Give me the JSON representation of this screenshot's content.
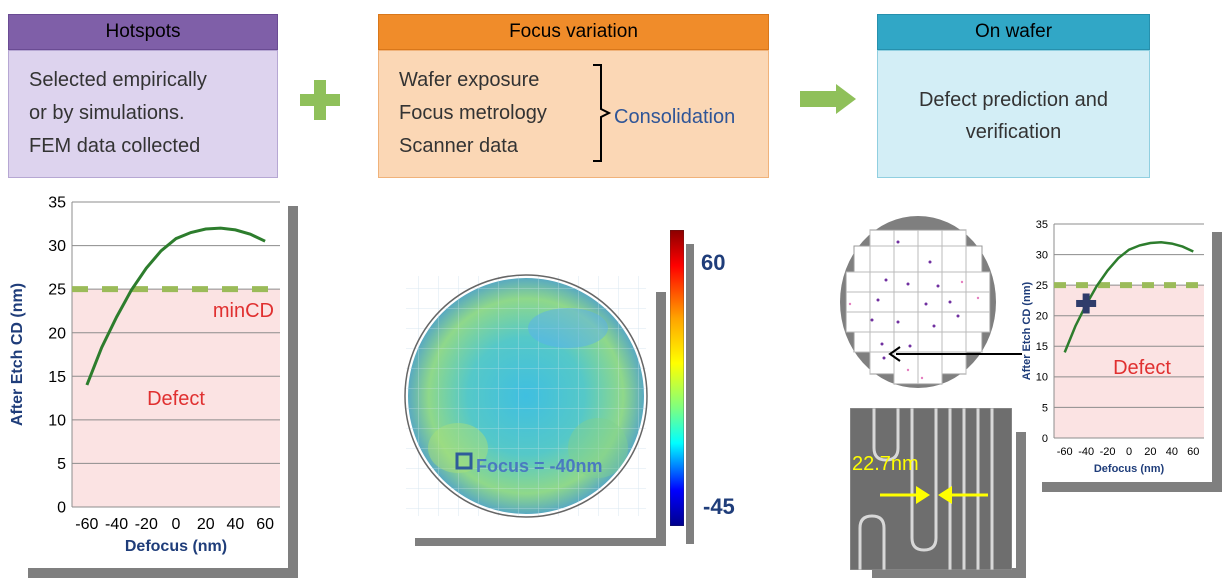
{
  "steps": {
    "hotspots": {
      "title": "Hotspots",
      "lines": [
        "Selected empirically",
        "or by simulations.",
        "FEM data collected"
      ]
    },
    "focus": {
      "title": "Focus variation",
      "lines": [
        "Wafer exposure",
        "Focus metrology",
        "Scanner data"
      ],
      "consolidation": "Consolidation"
    },
    "wafer": {
      "title": "On wafer",
      "lines": [
        "Defect prediction and",
        "verification"
      ]
    }
  },
  "icons": {
    "plus": "plus-icon",
    "arrow": "right-arrow-icon"
  },
  "colors": {
    "hotspots_header": "#7f5fa8",
    "hotspots_body": "#ddd3ee",
    "focus_header": "#f08c2a",
    "focus_body": "#fbd7b5",
    "wafer_header": "#31a7c6",
    "wafer_body": "#d3eef6",
    "curve": "#2d7d2d",
    "mincd_line": "#9bbb59",
    "defect_fill": "#fbe3e3",
    "defect_text": "#e03030",
    "axis_text": "#1f3d7a",
    "focus_text": "#4a7ac0"
  },
  "chart_data": [
    {
      "type": "line",
      "xlabel": "Defocus (nm)",
      "ylabel": "After Etch CD (nm)",
      "xlim": [
        -70,
        70
      ],
      "ylim": [
        0,
        35
      ],
      "xticks": [
        -60,
        -40,
        -20,
        0,
        20,
        40,
        60
      ],
      "yticks": [
        0,
        5,
        10,
        15,
        20,
        25,
        30,
        35
      ],
      "x": [
        -60,
        -50,
        -40,
        -30,
        -20,
        -10,
        0,
        10,
        20,
        30,
        40,
        50,
        60
      ],
      "y": [
        14,
        18.3,
        21.8,
        24.9,
        27.4,
        29.4,
        30.8,
        31.5,
        31.9,
        32.0,
        31.8,
        31.3,
        30.5
      ],
      "threshold": 25,
      "annotations": {
        "threshold_label": "minCD",
        "region_label": "Defect"
      },
      "grid": true
    },
    {
      "type": "line",
      "xlabel": "Defocus (nm)",
      "ylabel": "After Etch CD (nm)",
      "xlim": [
        -70,
        70
      ],
      "ylim": [
        0,
        35
      ],
      "xticks": [
        -60,
        -40,
        -20,
        0,
        20,
        40,
        60
      ],
      "yticks": [
        0,
        5,
        10,
        15,
        20,
        25,
        30,
        35
      ],
      "x": [
        -60,
        -50,
        -40,
        -30,
        -20,
        -10,
        0,
        10,
        20,
        30,
        40,
        50,
        60
      ],
      "y": [
        14,
        18.3,
        21.8,
        24.9,
        27.4,
        29.4,
        30.8,
        31.5,
        31.9,
        32.0,
        31.8,
        31.3,
        30.5
      ],
      "threshold": 25,
      "marker": {
        "x": -40,
        "y": 22
      },
      "annotations": {
        "region_label": "Defect"
      },
      "grid": true
    }
  ],
  "wafer_map": {
    "colorbar_max": "60",
    "colorbar_min": "-45",
    "focus_label": "Focus = -40nm"
  },
  "sem": {
    "measurement": "22.7nm"
  }
}
